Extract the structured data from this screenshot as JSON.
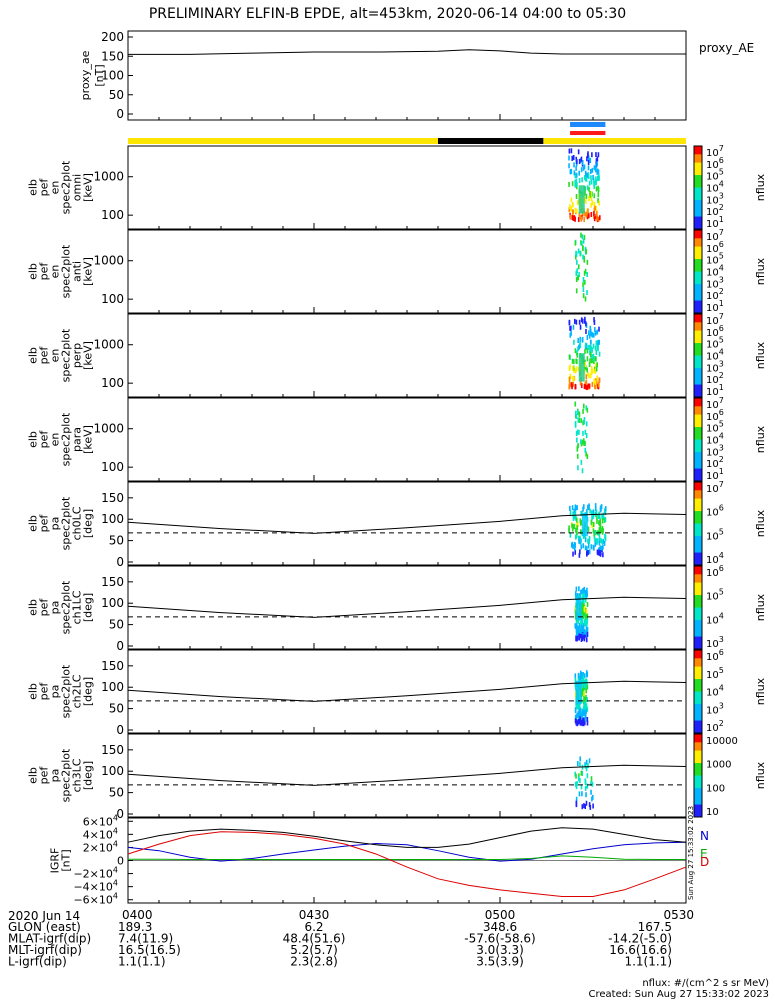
{
  "title": "PRELIMINARY ELFIN-B EPDE, alt=453km, 2020-06-14 04:00 to 05:30",
  "colors": {
    "axis": "#000000",
    "sunlight_bar": "#ffe600",
    "shadow_bar": "#000000",
    "science_zone_blue": "#1e88ff",
    "science_zone_red": "#ff1a1a",
    "bfield_n": "#0000cc",
    "bfield_e": "#00aa00",
    "bfield_d": "#dd0000",
    "bfield_total": "#000000"
  },
  "proxy_legend": "proxy_AE",
  "chart_data": [
    {
      "type": "line",
      "panel": "proxy_ae",
      "ylabel": [
        "proxy_ae",
        "[nT]"
      ],
      "ylim": [
        0,
        200
      ],
      "yticks": [
        "200",
        "150",
        "100",
        "50",
        "0"
      ],
      "x": [
        0,
        10,
        20,
        30,
        40,
        50,
        55,
        60,
        65,
        70,
        80,
        90
      ],
      "values": [
        155,
        155,
        158,
        161,
        161,
        163,
        167,
        164,
        158,
        156,
        156,
        156
      ]
    },
    {
      "type": "heatmap",
      "panel": "elb_pef_en_spec2plot_omni",
      "ylabel": [
        "elb",
        "pef",
        "en",
        "spec2plot",
        "omni",
        "[keV]"
      ],
      "yscale": "log",
      "yticks": [
        "1000",
        "100"
      ],
      "colorbar": {
        "label": "nflux",
        "ticks": [
          "10^7",
          "10^6",
          "10^5",
          "10^4",
          "10^3",
          "10^2",
          "10^1"
        ]
      },
      "activity_minutes": [
        71,
        76
      ]
    },
    {
      "type": "heatmap",
      "panel": "elb_pef_en_spec2plot_anti",
      "ylabel": [
        "elb",
        "pef",
        "en",
        "spec2plot",
        "anti",
        "[keV]"
      ],
      "yscale": "log",
      "yticks": [
        "1000",
        "100"
      ],
      "colorbar": {
        "label": "nflux",
        "ticks": [
          "10^7",
          "10^6",
          "10^5",
          "10^4",
          "10^3",
          "10^2",
          "10^1"
        ]
      },
      "activity_minutes": [
        72,
        74
      ]
    },
    {
      "type": "heatmap",
      "panel": "elb_pef_en_spec2plot_perp",
      "ylabel": [
        "elb",
        "pef",
        "en",
        "spec2plot",
        "perp",
        "[keV]"
      ],
      "yscale": "log",
      "yticks": [
        "1000",
        "100"
      ],
      "colorbar": {
        "label": "nflux",
        "ticks": [
          "10^7",
          "10^6",
          "10^5",
          "10^4",
          "10^3",
          "10^2",
          "10^1"
        ]
      },
      "activity_minutes": [
        71,
        76
      ]
    },
    {
      "type": "heatmap",
      "panel": "elb_pef_en_spec2plot_para",
      "ylabel": [
        "elb",
        "pef",
        "en",
        "spec2plot",
        "para",
        "[keV]"
      ],
      "yscale": "log",
      "yticks": [
        "1000",
        "100"
      ],
      "colorbar": {
        "label": "nflux",
        "ticks": [
          "10^7",
          "10^6",
          "10^5",
          "10^4",
          "10^3",
          "10^2",
          "10^1"
        ]
      },
      "activity_minutes": [
        72,
        74
      ]
    },
    {
      "type": "heatmap",
      "panel": "elb_pef_pa_spec2plot_ch0LC",
      "ylabel": [
        "elb",
        "pef",
        "pa",
        "spec2plot",
        "ch0LC",
        "[deg]"
      ],
      "ylim": [
        0,
        180
      ],
      "yticks": [
        "150",
        "100",
        "50",
        "0"
      ],
      "colorbar": {
        "label": "nflux",
        "ticks": [
          "10^7",
          "10^6",
          "10^5",
          "10^4"
        ]
      },
      "activity_minutes": [
        71,
        77
      ],
      "lc_line": {
        "x": [
          0,
          15,
          30,
          45,
          60,
          70,
          80,
          90
        ],
        "values": [
          93,
          78,
          67,
          80,
          95,
          108,
          114,
          111
        ]
      },
      "dashed_level": 68
    },
    {
      "type": "heatmap",
      "panel": "elb_pef_pa_spec2plot_ch1LC",
      "ylabel": [
        "elb",
        "pef",
        "pa",
        "spec2plot",
        "ch1LC",
        "[deg]"
      ],
      "ylim": [
        0,
        180
      ],
      "yticks": [
        "150",
        "100",
        "50",
        "0"
      ],
      "colorbar": {
        "label": "nflux",
        "ticks": [
          "10^6",
          "10^5",
          "10^4",
          "10^3"
        ]
      },
      "activity_minutes": [
        72,
        74
      ],
      "lc_line": {
        "x": [
          0,
          15,
          30,
          45,
          60,
          70,
          80,
          90
        ],
        "values": [
          93,
          78,
          67,
          80,
          95,
          108,
          114,
          111
        ]
      },
      "dashed_level": 68
    },
    {
      "type": "heatmap",
      "panel": "elb_pef_pa_spec2plot_ch2LC",
      "ylabel": [
        "elb",
        "pef",
        "pa",
        "spec2plot",
        "ch2LC",
        "[deg]"
      ],
      "ylim": [
        0,
        180
      ],
      "yticks": [
        "150",
        "100",
        "50",
        "0"
      ],
      "colorbar": {
        "label": "nflux",
        "ticks": [
          "10^6",
          "10^5",
          "10^4",
          "10^3",
          "10^2"
        ]
      },
      "activity_minutes": [
        72,
        74
      ],
      "lc_line": {
        "x": [
          0,
          15,
          30,
          45,
          60,
          70,
          80,
          90
        ],
        "values": [
          93,
          78,
          67,
          80,
          95,
          108,
          114,
          111
        ]
      },
      "dashed_level": 68
    },
    {
      "type": "heatmap",
      "panel": "elb_pef_pa_spec2plot_ch3LC",
      "ylabel": [
        "elb",
        "pef",
        "pa",
        "spec2plot",
        "ch3LC",
        "[deg]"
      ],
      "ylim": [
        0,
        180
      ],
      "yticks": [
        "150",
        "100",
        "50",
        "0"
      ],
      "colorbar": {
        "label": "nflux",
        "ticks": [
          "10000",
          "1000",
          "100",
          "10"
        ]
      },
      "activity_minutes": [
        72,
        75
      ],
      "lc_line": {
        "x": [
          0,
          15,
          30,
          45,
          60,
          70,
          80,
          90
        ],
        "values": [
          93,
          78,
          67,
          80,
          95,
          108,
          114,
          111
        ]
      },
      "dashed_level": 68
    },
    {
      "type": "line",
      "panel": "IGRF",
      "ylabel": [
        "IGRF",
        "[nT]"
      ],
      "ylim": [
        -65000,
        65000
      ],
      "yticks": [
        "6×10^4",
        "4×10^4",
        "2×10^4",
        "0",
        "−2×10^4",
        "−4×10^4",
        "−6×10^4"
      ],
      "x": [
        0,
        5,
        10,
        15,
        20,
        25,
        30,
        35,
        40,
        45,
        50,
        55,
        60,
        65,
        70,
        75,
        80,
        85,
        90
      ],
      "series": [
        {
          "name": "N",
          "values": [
            20000,
            15000,
            5000,
            -1000,
            3000,
            10000,
            16000,
            22000,
            26000,
            24000,
            15000,
            5000,
            -1000,
            2000,
            10000,
            18000,
            24000,
            27000,
            28000
          ]
        },
        {
          "name": "E",
          "values": [
            2000,
            2000,
            1500,
            1500,
            1500,
            1500,
            1500,
            1500,
            1500,
            1500,
            1500,
            1500,
            1500,
            3000,
            7000,
            5000,
            2000,
            1500,
            1500
          ]
        },
        {
          "name": "D",
          "values": [
            10000,
            25000,
            38000,
            44000,
            43000,
            40000,
            34000,
            25000,
            10000,
            -10000,
            -28000,
            -38000,
            -45000,
            -50000,
            -55000,
            -55000,
            -45000,
            -28000,
            -10000
          ]
        },
        {
          "name": "total",
          "values": [
            28000,
            38000,
            45000,
            48000,
            46000,
            43000,
            37000,
            30000,
            24000,
            20000,
            20000,
            25000,
            35000,
            45000,
            50000,
            48000,
            40000,
            32000,
            28000
          ]
        }
      ]
    }
  ],
  "xaxis": {
    "date": "2020 Jun 14",
    "tick_labels": [
      "0400",
      "0430",
      "0500",
      "0530"
    ]
  },
  "ephemeris": [
    {
      "label": "GLON (east)",
      "values": [
        "189.3",
        "6.2",
        "348.6",
        "167.5"
      ]
    },
    {
      "label": "MLAT-igrf(dip)",
      "values": [
        "7.4(11.9)",
        "48.4(51.6)",
        "-57.6(-58.6)",
        "-14.2(-5.0)"
      ]
    },
    {
      "label": "MLT-igrf(dip)",
      "values": [
        "16.5(16.5)",
        "5.2(5.7)",
        "3.0(3.3)",
        "16.6(16.6)"
      ]
    },
    {
      "label": "L-igrf(dip)",
      "values": [
        "1.1(1.1)",
        "2.3(2.8)",
        "3.5(3.9)",
        "1.1(1.1)"
      ]
    }
  ],
  "side_stamp": "Sun Aug 27 15:33:02 2023",
  "footer": {
    "units": "nflux: #/(cm^2 s sr MeV)",
    "created": "Created: Sun Aug 27 15:33:02 2023"
  }
}
